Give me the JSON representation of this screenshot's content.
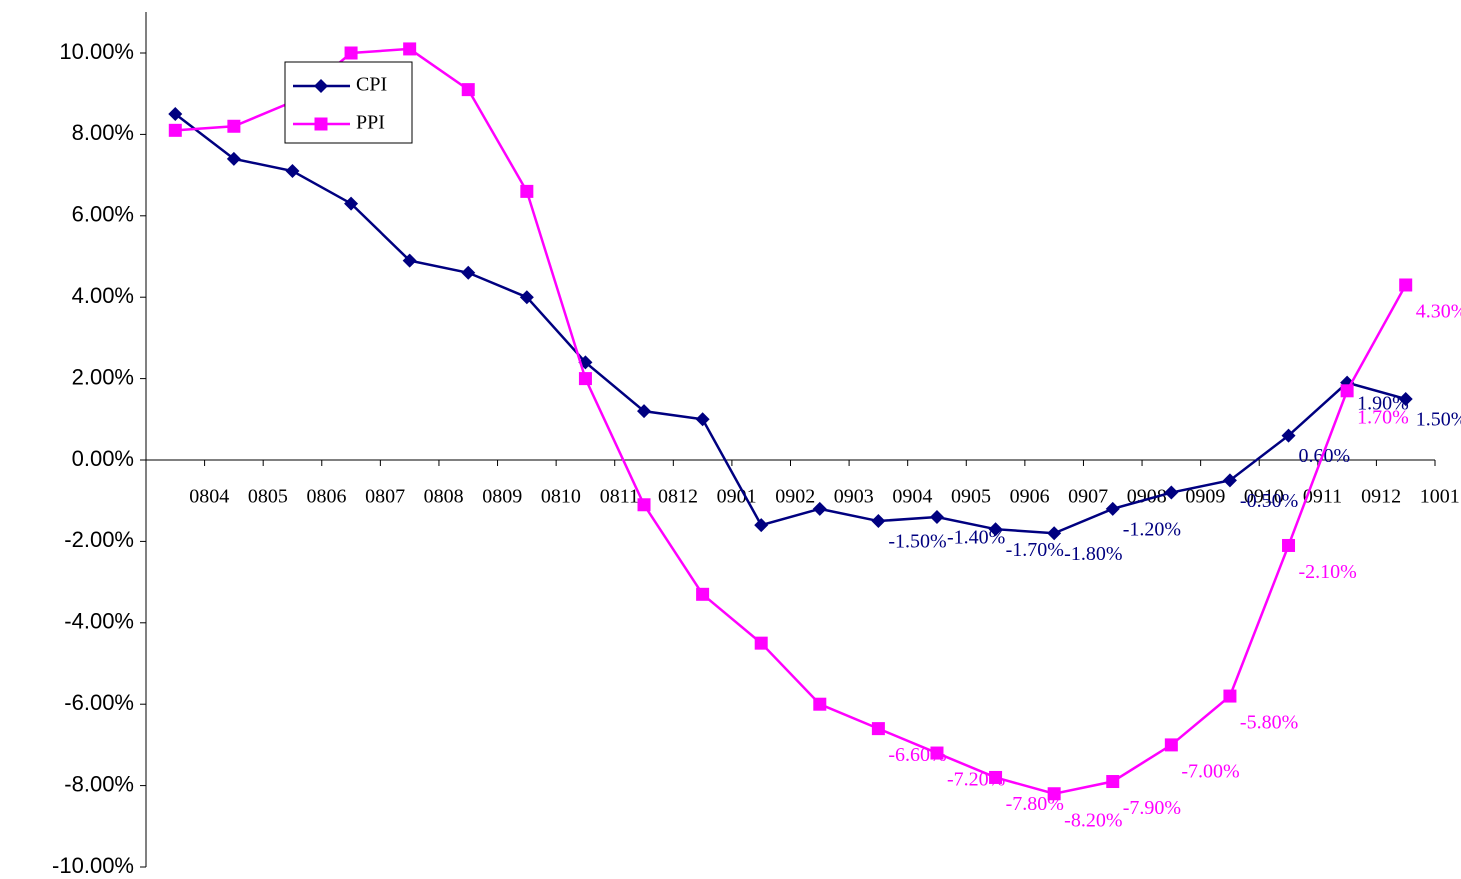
{
  "chart_data": {
    "type": "line",
    "categories": [
      "0804",
      "0805",
      "0806",
      "0807",
      "0808",
      "0809",
      "0810",
      "0811",
      "0812",
      "0901",
      "0902",
      "0903",
      "0904",
      "0905",
      "0906",
      "0907",
      "0908",
      "0909",
      "0910",
      "0911",
      "0912",
      "1001"
    ],
    "series": [
      {
        "name": "CPI",
        "color": "#000080",
        "marker": "diamond",
        "values": [
          8.5,
          7.4,
          7.1,
          6.3,
          4.9,
          4.6,
          4.0,
          2.4,
          1.2,
          1.0,
          -1.6,
          -1.2,
          -1.5,
          -1.4,
          -1.7,
          -1.8,
          -1.2,
          -0.8,
          -0.5,
          0.6,
          1.9,
          1.5
        ],
        "value_labels": [
          null,
          null,
          null,
          null,
          null,
          null,
          null,
          null,
          null,
          null,
          null,
          null,
          "-1.50%",
          "-1.40%",
          "-1.70%",
          "-1.80%",
          "-1.20%",
          null,
          "-0.50%",
          "0.60%",
          "1.90%",
          "1.50%"
        ]
      },
      {
        "name": "PPI",
        "color": "#ff00ff",
        "marker": "square",
        "values": [
          8.1,
          8.2,
          8.8,
          10.0,
          10.1,
          9.1,
          6.6,
          2.0,
          -1.1,
          -3.3,
          -4.5,
          -6.0,
          -6.6,
          -7.2,
          -7.8,
          -8.2,
          -7.9,
          -7.0,
          -5.8,
          -2.1,
          1.7,
          4.3
        ],
        "value_labels": [
          null,
          null,
          null,
          null,
          null,
          null,
          null,
          null,
          null,
          null,
          null,
          null,
          "-6.60%",
          "-7.20%",
          "-7.80%",
          "-8.20%",
          "-7.90%",
          "-7.00%",
          "-5.80%",
          "-2.10%",
          "1.70%",
          "4.30%"
        ]
      }
    ],
    "ylim": [
      -10,
      10
    ],
    "yticks": [
      {
        "value": -10,
        "label": "-10.00%"
      },
      {
        "value": -8,
        "label": "-8.00%"
      },
      {
        "value": -6,
        "label": "-6.00%"
      },
      {
        "value": -4,
        "label": "-4.00%"
      },
      {
        "value": -2,
        "label": "-2.00%"
      },
      {
        "value": 0,
        "label": "0.00%"
      },
      {
        "value": 2,
        "label": "2.00%"
      },
      {
        "value": 4,
        "label": "4.00%"
      },
      {
        "value": 6,
        "label": "6.00%"
      },
      {
        "value": 8,
        "label": "8.00%"
      },
      {
        "value": 10,
        "label": "10.00%"
      }
    ],
    "grid": false,
    "legend": "top-left"
  }
}
